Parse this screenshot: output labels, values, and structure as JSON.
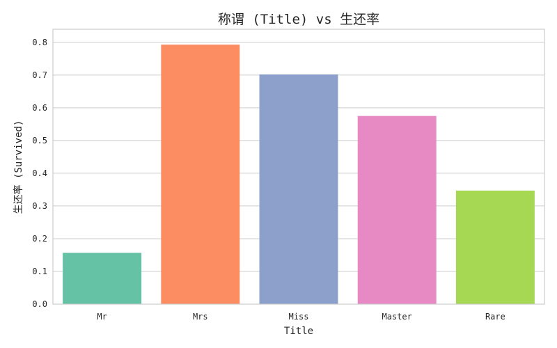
{
  "chart_data": {
    "type": "bar",
    "title": "称谓 (Title) vs 生还率",
    "xlabel": "Title",
    "ylabel": "生还率 (Survived)",
    "categories": [
      "Mr",
      "Mrs",
      "Miss",
      "Master",
      "Rare"
    ],
    "values": [
      0.157,
      0.793,
      0.702,
      0.575,
      0.347
    ],
    "colors": [
      "#66c2a5",
      "#fc8d62",
      "#8da0cb",
      "#e78ac3",
      "#a6d854"
    ],
    "ylim": [
      0,
      0.84
    ],
    "yticks": [
      "0.0",
      "0.1",
      "0.2",
      "0.3",
      "0.4",
      "0.5",
      "0.6",
      "0.7",
      "0.8"
    ],
    "grid": "horizontal",
    "legend": "none"
  }
}
